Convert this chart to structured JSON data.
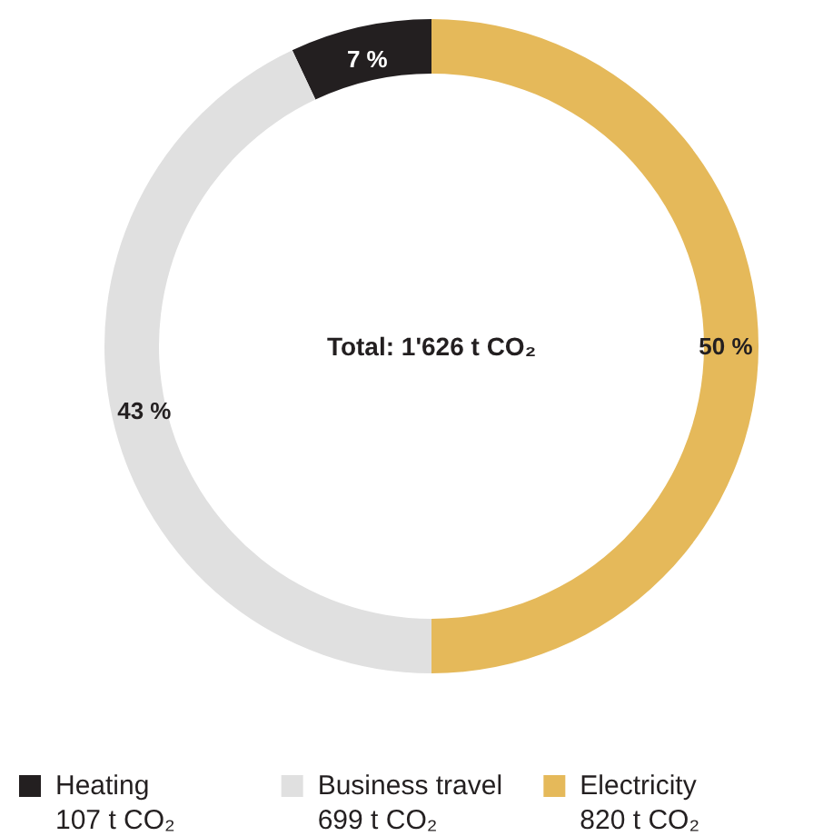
{
  "chart_data": {
    "type": "donut",
    "categories": [
      "Heating",
      "Business travel",
      "Electricity"
    ],
    "values": [
      7,
      43,
      50
    ],
    "colors": [
      "#231f20",
      "#e0e0e0",
      "#e5b95a"
    ],
    "value_labels": [
      "7 %",
      "43 %",
      "50 %"
    ],
    "annotations": [
      "Total: 1'626 t CO₂",
      "107 t CO₂",
      "699 t CO₂",
      "820 t CO₂"
    ],
    "legend": "bottom"
  }
}
